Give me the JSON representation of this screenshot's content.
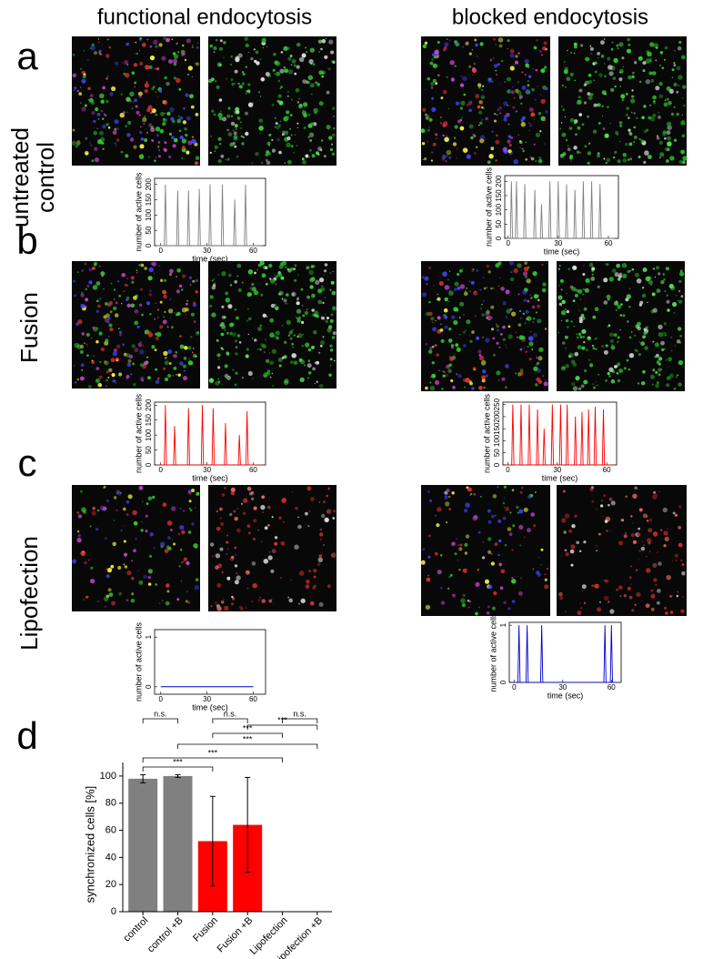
{
  "columns": [
    "functional endocytosis",
    "blocked endocytosis"
  ],
  "panels": [
    "a",
    "b",
    "c",
    "d"
  ],
  "rows": [
    [
      "untreated",
      "control"
    ],
    [
      "Fusion"
    ],
    [
      "Lipofection"
    ]
  ],
  "chart_data": [
    {
      "type": "spike",
      "xlabel": "time (sec)",
      "ylabel": "number of active cells",
      "color": "#808080",
      "x": [
        3,
        11,
        18,
        25,
        32,
        40,
        48,
        55
      ],
      "values": [
        200,
        180,
        180,
        185,
        200,
        200,
        150,
        200
      ],
      "xlim": [
        -4,
        68
      ],
      "ylim": [
        0,
        220
      ],
      "xticks": [
        0,
        30,
        60
      ],
      "yticks": [
        0,
        50,
        100,
        150,
        200
      ]
    },
    {
      "type": "spike",
      "xlabel": "time (sec)",
      "ylabel": "number of active cells",
      "color": "#808080",
      "x": [
        2,
        5,
        10,
        16,
        20,
        25,
        30,
        35,
        40,
        45,
        50,
        55
      ],
      "values": [
        200,
        200,
        190,
        170,
        120,
        200,
        200,
        190,
        170,
        200,
        200,
        190
      ],
      "xlim": [
        -2,
        66
      ],
      "ylim": [
        0,
        220
      ],
      "xticks": [
        0,
        30,
        60
      ],
      "yticks": [
        0,
        50,
        100,
        150,
        200
      ]
    },
    {
      "type": "spike",
      "xlabel": "time (sec)",
      "ylabel": "number of active cells",
      "color": "#ff0000",
      "x": [
        3,
        9,
        18,
        27,
        34,
        42,
        51,
        56
      ],
      "values": [
        200,
        130,
        190,
        200,
        190,
        140,
        100,
        180
      ],
      "xlim": [
        -4,
        68
      ],
      "ylim": [
        0,
        210
      ],
      "xticks": [
        0,
        30,
        60
      ],
      "yticks": [
        0,
        50,
        100,
        150,
        200
      ]
    },
    {
      "type": "spike",
      "xlabel": "time (sec)",
      "ylabel": "number of active cells",
      "color": "#ff0000",
      "x": [
        3,
        8,
        13,
        18,
        22,
        27,
        32,
        36,
        41,
        45,
        49,
        53,
        58
      ],
      "values": [
        250,
        250,
        250,
        230,
        150,
        250,
        250,
        250,
        200,
        220,
        230,
        240,
        230
      ],
      "xlim": [
        -3,
        66
      ],
      "ylim": [
        0,
        260
      ],
      "xticks": [
        0,
        30,
        60
      ],
      "yticks": [
        0,
        50,
        100,
        150,
        200,
        250
      ]
    },
    {
      "type": "line",
      "xlabel": "time (sec)",
      "ylabel": "number of active cells",
      "color": "#0000cc",
      "x": [
        0,
        60
      ],
      "values": [
        0,
        0
      ],
      "xlim": [
        -4,
        68
      ],
      "ylim": [
        -0.15,
        1.15
      ],
      "xticks": [
        0,
        30,
        60
      ],
      "yticks": [
        0,
        1
      ]
    },
    {
      "type": "spike",
      "xlabel": "time (sec)",
      "ylabel": "number of active cells",
      "color": "#0000cc",
      "x": [
        3,
        8,
        17,
        56,
        60
      ],
      "values": [
        1,
        1,
        1,
        1,
        1
      ],
      "xlim": [
        -3,
        66
      ],
      "ylim": [
        0,
        1.05
      ],
      "xticks": [
        0,
        30,
        60
      ],
      "yticks": [
        0,
        1
      ]
    },
    {
      "type": "bar",
      "ylabel": "synchronized cells [%]",
      "categories": [
        "control",
        "control +B",
        "Fusion",
        "Fusion +B",
        "Lipofection",
        "Lipofection +B"
      ],
      "values": [
        98,
        100,
        52,
        64,
        0,
        0
      ],
      "errors": [
        3,
        1,
        33,
        35,
        0,
        0
      ],
      "colors": [
        "#808080",
        "#808080",
        "#ff0000",
        "#ff0000",
        "#ff0000",
        "#ff0000"
      ],
      "ylim": [
        0,
        110
      ],
      "yticks": [
        0,
        20,
        40,
        60,
        80,
        100
      ],
      "significance": [
        {
          "pair": [
            0,
            1
          ],
          "label": "n.s."
        },
        {
          "pair": [
            2,
            3
          ],
          "label": "n.s."
        },
        {
          "pair": [
            4,
            5
          ],
          "label": "n.s."
        },
        {
          "pair": [
            3,
            5
          ],
          "label": "***"
        },
        {
          "pair": [
            2,
            4
          ],
          "label": "***"
        },
        {
          "pair": [
            1,
            5
          ],
          "label": "***"
        },
        {
          "pair": [
            0,
            4
          ],
          "label": "***"
        },
        {
          "pair": [
            0,
            2
          ],
          "label": "***"
        }
      ]
    }
  ]
}
